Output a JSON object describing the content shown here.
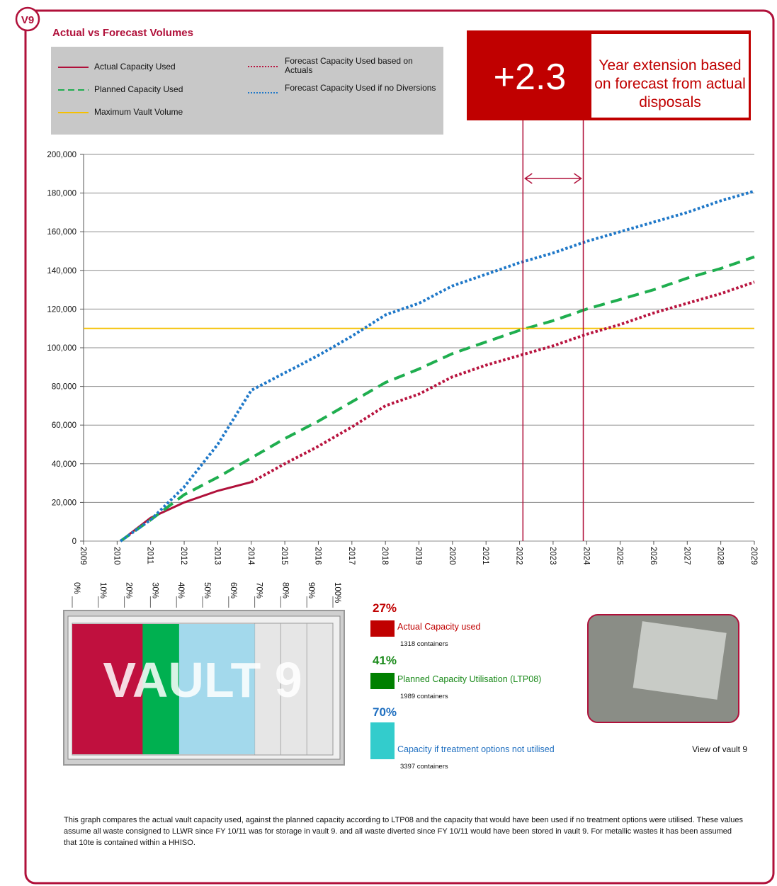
{
  "badge": "V9",
  "chart_data": {
    "type": "line",
    "title": "Actual vs Forecast Volumes",
    "xlim": [
      2009,
      2029
    ],
    "xticks": [
      2009,
      2010,
      2011,
      2012,
      2013,
      2014,
      2015,
      2016,
      2017,
      2018,
      2019,
      2020,
      2021,
      2022,
      2023,
      2024,
      2025,
      2026,
      2027,
      2028,
      2029
    ],
    "ylim": [
      0,
      200000
    ],
    "yticks": [
      0,
      {
        "value": 20000,
        "label": "20,000"
      },
      {
        "value": 40000,
        "label": "40,000"
      },
      {
        "value": 60000,
        "label": "60,000"
      },
      {
        "value": 80000,
        "label": "80,000"
      },
      {
        "value": 100000,
        "label": "100,000"
      },
      {
        "value": 120000,
        "label": "120,000"
      },
      {
        "value": 140000,
        "label": "140,000"
      },
      {
        "value": 160000,
        "label": "160,000"
      },
      {
        "value": 180000,
        "label": "180,000"
      },
      {
        "value": 200000,
        "label": "200,000"
      }
    ],
    "grid": true,
    "series": [
      {
        "name": "Actual Capacity Used",
        "color": "#b0103a",
        "style": "solid",
        "x": [
          2010.1,
          2011,
          2012,
          2013,
          2014
        ],
        "values": [
          0,
          12000,
          20000,
          26000,
          30500
        ]
      },
      {
        "name": "Planned Capacity Used",
        "color": "#1fae4f",
        "style": "dashed",
        "x": [
          2010.1,
          2011,
          2012,
          2013,
          2014,
          2015,
          2016,
          2017,
          2018,
          2019,
          2020,
          2021,
          2022,
          2023,
          2024,
          2025,
          2026,
          2027,
          2028,
          2029
        ],
        "values": [
          0,
          11000,
          24000,
          33000,
          43000,
          53000,
          62000,
          72000,
          82000,
          89000,
          97000,
          103000,
          109000,
          114000,
          120000,
          125000,
          130000,
          136000,
          141000,
          147000
        ]
      },
      {
        "name": "Maximum Vault Volume",
        "color": "#f5c000",
        "style": "solid",
        "x": [
          2009,
          2029
        ],
        "values": [
          110000,
          110000
        ]
      },
      {
        "name": "Forecast Capacity Used based on Actuals",
        "color": "#b8143f",
        "style": "dotted",
        "x": [
          2014,
          2015,
          2016,
          2017,
          2018,
          2019,
          2020,
          2021,
          2022,
          2023,
          2024,
          2025,
          2026,
          2027,
          2028,
          2029
        ],
        "values": [
          30500,
          40000,
          49000,
          59000,
          70000,
          76000,
          85000,
          91000,
          96000,
          101000,
          107000,
          112000,
          118000,
          123000,
          128000,
          134000
        ]
      },
      {
        "name": "Forecast Capacity Used if no Diversions",
        "color": "#1f78c8",
        "style": "dotted",
        "x": [
          2010.1,
          2011,
          2012,
          2013,
          2014,
          2015,
          2016,
          2017,
          2018,
          2019,
          2020,
          2021,
          2022,
          2023,
          2024,
          2025,
          2026,
          2027,
          2028,
          2029
        ],
        "values": [
          0,
          11000,
          28000,
          50000,
          78000,
          87000,
          96000,
          106000,
          117000,
          123000,
          132000,
          138000,
          144000,
          149000,
          155000,
          160000,
          165000,
          170000,
          176000,
          181000
        ]
      }
    ],
    "vlines": [
      2022.1,
      2023.9
    ],
    "callout": {
      "value": "+2.3",
      "text": "Year extension based on forecast from actual disposals"
    }
  },
  "gauge": {
    "ticks": [
      {
        "value": 0,
        "label": "0%"
      },
      {
        "value": 10,
        "label": "10%"
      },
      {
        "value": 20,
        "label": "20%"
      },
      {
        "value": 30,
        "label": "30%"
      },
      {
        "value": 40,
        "label": "40%"
      },
      {
        "value": 50,
        "label": "50%"
      },
      {
        "value": 60,
        "label": "60%"
      },
      {
        "value": 70,
        "label": "70%"
      },
      {
        "value": 80,
        "label": "80%"
      },
      {
        "value": 90,
        "label": "90%"
      },
      {
        "value": 100,
        "label": "100%"
      }
    ],
    "label": "VAULT 9",
    "items": [
      {
        "name": "Actual Capacity used",
        "value": 27,
        "value_label": "27%",
        "color": "#c0103e",
        "swatch": "#c00000",
        "text_color": "#c00000",
        "containers": "1318  containers"
      },
      {
        "name": "Planned Capacity Utilisation (LTP08)",
        "value": 41,
        "value_label": "41%",
        "color": "#00b050",
        "swatch": "#008000",
        "text_color": "#1a8a1a",
        "containers": "1989  containers"
      },
      {
        "name": "Capacity if treatment options not utilised",
        "value": 70,
        "value_label": "70%",
        "color": "#a3d9ec",
        "swatch": "#33cccc",
        "text_color": "#1f6fc0",
        "containers": "3397  containers"
      }
    ]
  },
  "photo_caption": "View of vault 9",
  "footer": "This graph compares the actual vault capacity used, against the planned capacity according to LTP08 and the capacity that would have been used if no treatment options were utilised.  These values assume all waste consigned to LLWR since FY 10/11 was for storage in vault 9. and all waste diverted since FY 10/11  would have been stored in vault 9. For metallic wastes it has been assumed that 10te is contained within a HHISO."
}
